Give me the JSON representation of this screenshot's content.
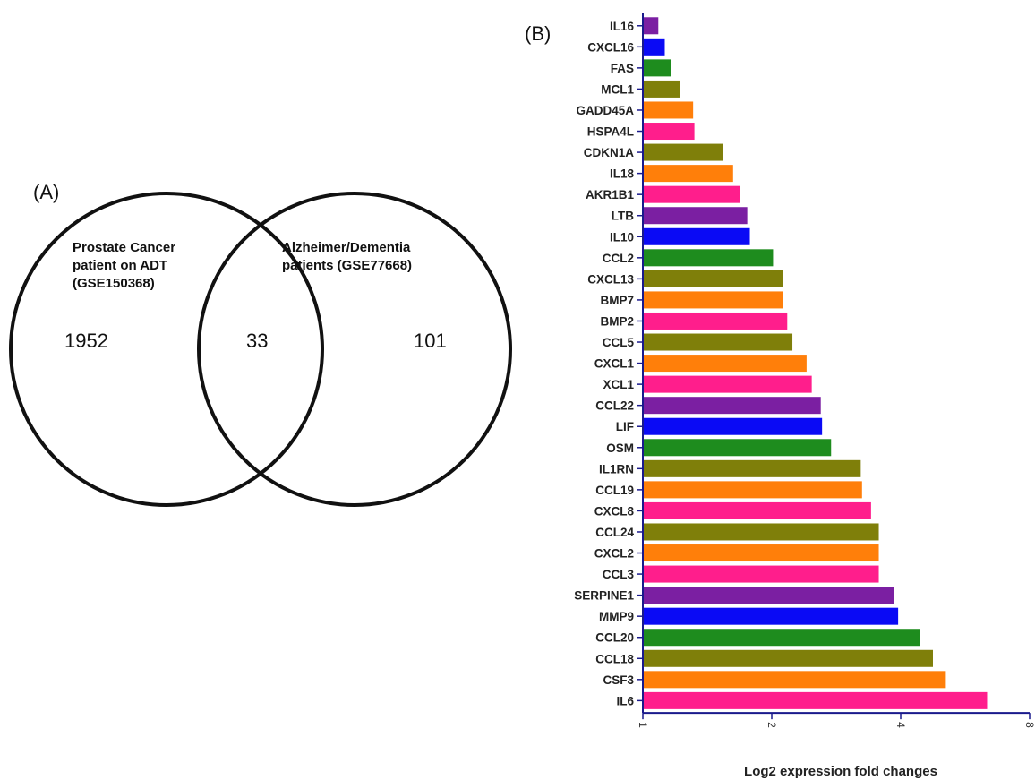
{
  "panel_a": {
    "label": "(A)",
    "set_left": {
      "lines": [
        "Prostate Cancer",
        "patient on ADT",
        "(GSE150368)"
      ],
      "unique_count": "1952"
    },
    "set_right": {
      "lines": [
        "Alzheimer/Dementia",
        "patients (GSE77668)"
      ],
      "unique_count": "101"
    },
    "overlap_count": "33"
  },
  "panel_b": {
    "label": "(B)"
  },
  "chart_data": {
    "type": "bar",
    "orientation": "horizontal",
    "categories": [
      "IL16",
      "CXCL16",
      "FAS",
      "MCL1",
      "GADD45A",
      "HSPA4L",
      "CDKN1A",
      "IL18",
      "AKR1B1",
      "LTB",
      "IL10",
      "CCL2",
      "CXCL13",
      "BMP7",
      "BMP2",
      "CCL5",
      "CXCL1",
      "XCL1",
      "CCL22",
      "LIF",
      "OSM",
      "IL1RN",
      "CCL19",
      "CXCL8",
      "CCL24",
      "CXCL2",
      "CCL3",
      "SERPINE1",
      "MMP9",
      "CCL20",
      "CCL18",
      "CSF3",
      "IL6"
    ],
    "values": [
      0.12,
      0.17,
      0.22,
      0.29,
      0.39,
      0.4,
      0.62,
      0.7,
      0.75,
      0.81,
      0.83,
      1.01,
      1.09,
      1.09,
      1.12,
      1.16,
      1.27,
      1.31,
      1.38,
      1.39,
      1.46,
      1.69,
      1.7,
      1.77,
      1.83,
      1.83,
      1.83,
      1.95,
      1.98,
      2.15,
      2.25,
      2.35,
      2.67
    ],
    "colors": [
      "#7B1FA2",
      "#0A0AF5",
      "#1E8C1E",
      "#7F7F0A",
      "#FF7F0A",
      "#FF1E8C",
      "#7F7F0A",
      "#FF7F0A",
      "#FF1E8C",
      "#7B1FA2",
      "#0A0AF5",
      "#1E8C1E",
      "#7F7F0A",
      "#FF7F0A",
      "#FF1E8C",
      "#7F7F0A",
      "#FF7F0A",
      "#FF1E8C",
      "#7B1FA2",
      "#0A0AF5",
      "#1E8C1E",
      "#7F7F0A",
      "#FF7F0A",
      "#FF1E8C",
      "#7F7F0A",
      "#FF7F0A",
      "#FF1E8C",
      "#7B1FA2",
      "#0A0AF5",
      "#1E8C1E",
      "#7F7F0A",
      "#FF7F0A",
      "#FF1E8C"
    ],
    "xlabel": "Log2 expression fold changes",
    "xticks": [
      0,
      1,
      2,
      3
    ],
    "xtick_labels": [
      "1",
      "2",
      "4",
      "8"
    ],
    "xlim": [
      0,
      3
    ],
    "axis_color": "#1a1a8c"
  }
}
